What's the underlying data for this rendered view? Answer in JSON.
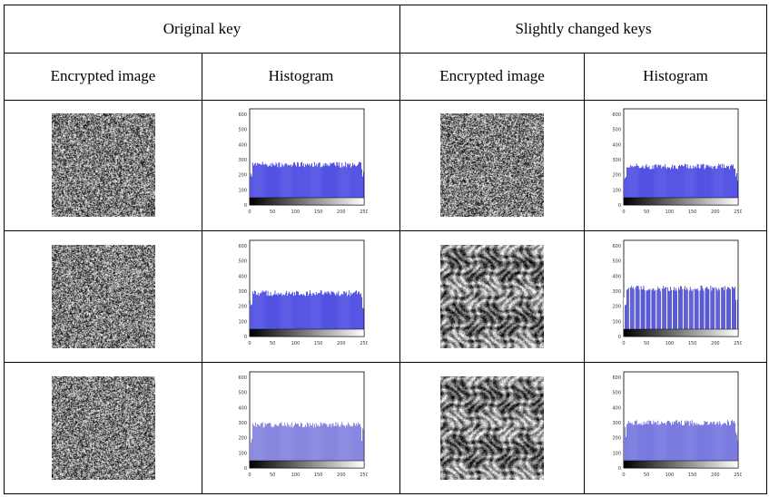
{
  "table": {
    "group_headers": [
      "Original key",
      "Slightly changed keys"
    ],
    "column_headers": [
      "Encrypted image",
      "Histogram",
      "Encrypted image",
      "Histogram"
    ],
    "rows": [
      {
        "left_hist": {
          "y_ticks": [
            "600",
            "500",
            "400",
            "300",
            "200",
            "100",
            "0"
          ],
          "x_ticks": [
            "0",
            "50",
            "100",
            "150",
            "200",
            "250"
          ],
          "color": "#2a2adc",
          "level": 0.42,
          "style": "uniform"
        },
        "right_hist": {
          "y_ticks": [
            "600",
            "500",
            "400",
            "300",
            "200",
            "100",
            "0"
          ],
          "x_ticks": [
            "0",
            "50",
            "100",
            "150",
            "200",
            "250"
          ],
          "color": "#2a2adc",
          "level": 0.4,
          "style": "uniform"
        },
        "left_img": {
          "type": "noise"
        },
        "right_img": {
          "type": "noise"
        }
      },
      {
        "left_hist": {
          "y_ticks": [
            "600",
            "500",
            "400",
            "300",
            "200",
            "100",
            "0"
          ],
          "x_ticks": [
            "0",
            "50",
            "100",
            "150",
            "200",
            "250"
          ],
          "color": "#2a2adc",
          "level": 0.45,
          "style": "uniform"
        },
        "right_hist": {
          "y_ticks": [
            "600",
            "500",
            "400",
            "300",
            "200",
            "100",
            "0"
          ],
          "x_ticks": [
            "0",
            "50",
            "100",
            "150",
            "200",
            "250"
          ],
          "color": "#3232c8",
          "level": 0.5,
          "style": "banded"
        },
        "left_img": {
          "type": "noise"
        },
        "right_img": {
          "type": "swirl"
        }
      },
      {
        "left_hist": {
          "y_ticks": [
            "600",
            "500",
            "400",
            "300",
            "200",
            "100",
            "0"
          ],
          "x_ticks": [
            "0",
            "50",
            "100",
            "150",
            "200",
            "250"
          ],
          "color": "#6a6ad8",
          "level": 0.45,
          "style": "light"
        },
        "right_hist": {
          "y_ticks": [
            "600",
            "500",
            "400",
            "300",
            "200",
            "100",
            "0"
          ],
          "x_ticks": [
            "0",
            "50",
            "100",
            "150",
            "200",
            "250"
          ],
          "color": "#5a5ad8",
          "level": 0.47,
          "style": "light"
        },
        "left_img": {
          "type": "noise"
        },
        "right_img": {
          "type": "swirl"
        }
      }
    ]
  }
}
